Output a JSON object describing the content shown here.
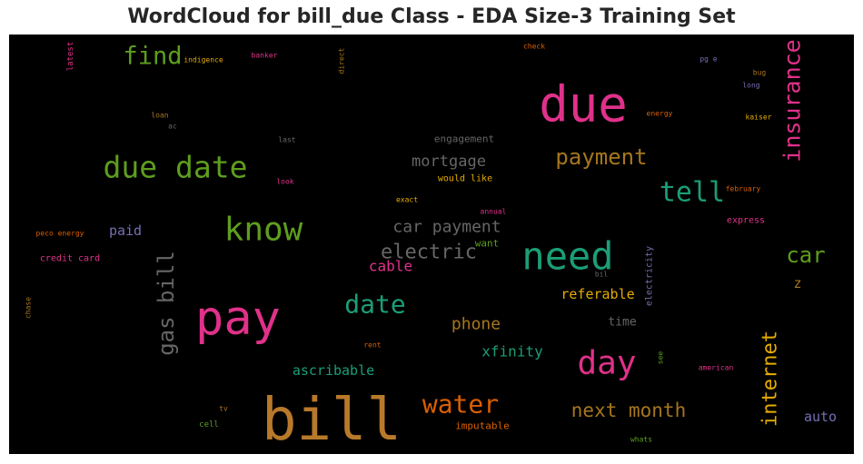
{
  "chart_data": {
    "type": "wordcloud",
    "title": "WordCloud for bill_due Class - EDA Size-3 Training Set",
    "background": "#000000",
    "words": [
      {
        "text": "bill",
        "size": 64,
        "color": "#b8792a",
        "rotate": 0
      },
      {
        "text": "pay",
        "size": 52,
        "color": "#e0318a",
        "rotate": 0
      },
      {
        "text": "due",
        "size": 54,
        "color": "#e0318a",
        "rotate": 0
      },
      {
        "text": "need",
        "size": 42,
        "color": "#1b9e77",
        "rotate": 0
      },
      {
        "text": "know",
        "size": 36,
        "color": "#5e9e1e",
        "rotate": 0
      },
      {
        "text": "due date",
        "size": 33,
        "color": "#5e9e1e",
        "rotate": 0
      },
      {
        "text": "day",
        "size": 36,
        "color": "#e0318a",
        "rotate": 0
      },
      {
        "text": "water",
        "size": 28,
        "color": "#d95f02",
        "rotate": 0
      },
      {
        "text": "date",
        "size": 28,
        "color": "#1b9e77",
        "rotate": 0
      },
      {
        "text": "tell",
        "size": 30,
        "color": "#1b9e77",
        "rotate": 0
      },
      {
        "text": "insurance",
        "size": 25,
        "color": "#e0318a",
        "rotate": -90
      },
      {
        "text": "find",
        "size": 27,
        "color": "#5e9e1e",
        "rotate": 0
      },
      {
        "text": "gas bill",
        "size": 24,
        "color": "#666666",
        "rotate": -90
      },
      {
        "text": "payment",
        "size": 24,
        "color": "#a6761d",
        "rotate": 0
      },
      {
        "text": "electric",
        "size": 22,
        "color": "#666666",
        "rotate": 0
      },
      {
        "text": "car",
        "size": 24,
        "color": "#5e9e1e",
        "rotate": 0
      },
      {
        "text": "internet",
        "size": 22,
        "color": "#e6ab02",
        "rotate": -90
      },
      {
        "text": "next month",
        "size": 21,
        "color": "#a6761d",
        "rotate": 0
      },
      {
        "text": "car payment",
        "size": 18,
        "color": "#666666",
        "rotate": 0
      },
      {
        "text": "mortgage",
        "size": 17,
        "color": "#666666",
        "rotate": 0
      },
      {
        "text": "phone",
        "size": 18,
        "color": "#a6761d",
        "rotate": 0
      },
      {
        "text": "xfinity",
        "size": 16,
        "color": "#1b9e77",
        "rotate": 0
      },
      {
        "text": "cable",
        "size": 16,
        "color": "#e0318a",
        "rotate": 0
      },
      {
        "text": "referable",
        "size": 15,
        "color": "#e6ab02",
        "rotate": 0
      },
      {
        "text": "ascribable",
        "size": 15,
        "color": "#1b9e77",
        "rotate": 0
      },
      {
        "text": "auto",
        "size": 15,
        "color": "#7570b3",
        "rotate": 0
      },
      {
        "text": "paid",
        "size": 15,
        "color": "#7570b3",
        "rotate": 0
      },
      {
        "text": "z",
        "size": 15,
        "color": "#a6761d",
        "rotate": 0
      },
      {
        "text": "time",
        "size": 13,
        "color": "#666666",
        "rotate": 0
      },
      {
        "text": "engagement",
        "size": 11,
        "color": "#666666",
        "rotate": 0
      },
      {
        "text": "want",
        "size": 11,
        "color": "#5e9e1e",
        "rotate": 0
      },
      {
        "text": "imputable",
        "size": 11,
        "color": "#d95f02",
        "rotate": 0
      },
      {
        "text": "electricity",
        "size": 10,
        "color": "#7570b3",
        "rotate": -90
      },
      {
        "text": "credit card",
        "size": 10,
        "color": "#e0318a",
        "rotate": 0
      },
      {
        "text": "express",
        "size": 10,
        "color": "#e0318a",
        "rotate": 0
      },
      {
        "text": "would like",
        "size": 10,
        "color": "#e6ab02",
        "rotate": 0
      },
      {
        "text": "latest",
        "size": 9,
        "color": "#e0318a",
        "rotate": -90
      },
      {
        "text": "indigence",
        "size": 8,
        "color": "#e6ab02",
        "rotate": 0
      },
      {
        "text": "banker",
        "size": 8,
        "color": "#e0318a",
        "rotate": 0
      },
      {
        "text": "direct",
        "size": 8,
        "color": "#a6761d",
        "rotate": -90
      },
      {
        "text": "check",
        "size": 8,
        "color": "#d95f02",
        "rotate": 0
      },
      {
        "text": "pg e",
        "size": 8,
        "color": "#7570b3",
        "rotate": 0
      },
      {
        "text": "bug",
        "size": 8,
        "color": "#a6761d",
        "rotate": 0
      },
      {
        "text": "long",
        "size": 8,
        "color": "#7570b3",
        "rotate": 0
      },
      {
        "text": "loan",
        "size": 8,
        "color": "#a6761d",
        "rotate": 0
      },
      {
        "text": "ac",
        "size": 8,
        "color": "#666666",
        "rotate": 0
      },
      {
        "text": "energy",
        "size": 8,
        "color": "#d95f02",
        "rotate": 0
      },
      {
        "text": "kaiser",
        "size": 8,
        "color": "#e6ab02",
        "rotate": 0
      },
      {
        "text": "last",
        "size": 8,
        "color": "#666666",
        "rotate": 0
      },
      {
        "text": "look",
        "size": 8,
        "color": "#e0318a",
        "rotate": 0
      },
      {
        "text": "february",
        "size": 8,
        "color": "#d95f02",
        "rotate": 0
      },
      {
        "text": "exact",
        "size": 8,
        "color": "#e6ab02",
        "rotate": 0
      },
      {
        "text": "annual",
        "size": 8,
        "color": "#e0318a",
        "rotate": 0
      },
      {
        "text": "peco energy",
        "size": 8,
        "color": "#d95f02",
        "rotate": 0
      },
      {
        "text": "chase",
        "size": 8,
        "color": "#a6761d",
        "rotate": -90
      },
      {
        "text": "rent",
        "size": 8,
        "color": "#d95f02",
        "rotate": 0
      },
      {
        "text": "bil",
        "size": 8,
        "color": "#666666",
        "rotate": 0
      },
      {
        "text": "see",
        "size": 8,
        "color": "#5e9e1e",
        "rotate": -90
      },
      {
        "text": "american",
        "size": 8,
        "color": "#e0318a",
        "rotate": 0
      },
      {
        "text": "tv",
        "size": 8,
        "color": "#a6761d",
        "rotate": 0
      },
      {
        "text": "cell",
        "size": 9,
        "color": "#5e9e1e",
        "rotate": 0
      },
      {
        "text": "whats",
        "size": 8,
        "color": "#5e9e1e",
        "rotate": 0
      }
    ]
  }
}
